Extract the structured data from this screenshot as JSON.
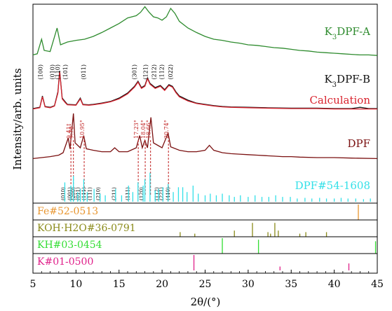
{
  "chart_data": {
    "type": "line",
    "xlabel": "2θ/(°)",
    "ylabel": "Intensity/arb. units",
    "xlim": [
      5,
      45
    ],
    "x_ticks": [
      5,
      10,
      15,
      20,
      25,
      30,
      35,
      40,
      45
    ],
    "grid": false,
    "series": [
      {
        "name": "K3DPF-A",
        "label_parts": [
          "K",
          "3",
          "DPF-A"
        ],
        "color": "#2e8b2e",
        "points": [
          [
            5,
            0.12
          ],
          [
            5.5,
            0.14
          ],
          [
            6,
            0.4
          ],
          [
            6.3,
            0.2
          ],
          [
            7,
            0.18
          ],
          [
            7.8,
            0.6
          ],
          [
            8.2,
            0.3
          ],
          [
            9,
            0.35
          ],
          [
            10,
            0.38
          ],
          [
            11,
            0.4
          ],
          [
            12,
            0.45
          ],
          [
            13,
            0.52
          ],
          [
            14,
            0.6
          ],
          [
            15,
            0.68
          ],
          [
            16,
            0.78
          ],
          [
            17,
            0.82
          ],
          [
            17.5,
            0.88
          ],
          [
            18,
            0.98
          ],
          [
            18.5,
            0.88
          ],
          [
            19,
            0.8
          ],
          [
            19.5,
            0.78
          ],
          [
            20,
            0.74
          ],
          [
            20.5,
            0.8
          ],
          [
            21,
            0.95
          ],
          [
            21.5,
            0.86
          ],
          [
            22,
            0.72
          ],
          [
            23,
            0.6
          ],
          [
            24,
            0.52
          ],
          [
            25,
            0.45
          ],
          [
            26,
            0.4
          ],
          [
            27,
            0.38
          ],
          [
            28,
            0.35
          ],
          [
            29,
            0.33
          ],
          [
            30,
            0.3
          ],
          [
            31,
            0.29
          ],
          [
            32,
            0.27
          ],
          [
            33,
            0.25
          ],
          [
            34,
            0.24
          ],
          [
            35,
            0.22
          ],
          [
            36,
            0.2
          ],
          [
            37,
            0.19
          ],
          [
            38,
            0.17
          ],
          [
            39,
            0.16
          ],
          [
            40,
            0.15
          ],
          [
            41,
            0.14
          ],
          [
            42,
            0.13
          ],
          [
            43,
            0.12
          ],
          [
            44,
            0.12
          ],
          [
            45,
            0.11
          ]
        ]
      },
      {
        "name": "K3DPF-B",
        "label_parts": [
          "K",
          "3",
          "DPF-B"
        ],
        "color": "#111111",
        "points": [
          [
            5,
            0.05
          ],
          [
            5.8,
            0.08
          ],
          [
            6.1,
            0.35
          ],
          [
            6.4,
            0.1
          ],
          [
            7,
            0.08
          ],
          [
            7.5,
            0.12
          ],
          [
            7.9,
            0.45
          ],
          [
            8.1,
            0.95
          ],
          [
            8.4,
            0.3
          ],
          [
            8.8,
            0.2
          ],
          [
            9,
            0.15
          ],
          [
            10,
            0.14
          ],
          [
            10.5,
            0.3
          ],
          [
            10.8,
            0.15
          ],
          [
            11.5,
            0.14
          ],
          [
            12,
            0.15
          ],
          [
            13,
            0.18
          ],
          [
            14,
            0.22
          ],
          [
            15,
            0.3
          ],
          [
            16,
            0.42
          ],
          [
            16.8,
            0.58
          ],
          [
            17.2,
            0.7
          ],
          [
            17.6,
            0.55
          ],
          [
            18,
            0.6
          ],
          [
            18.3,
            0.78
          ],
          [
            18.6,
            0.65
          ],
          [
            19.2,
            0.55
          ],
          [
            19.8,
            0.6
          ],
          [
            20.3,
            0.5
          ],
          [
            20.8,
            0.62
          ],
          [
            21.2,
            0.58
          ],
          [
            21.6,
            0.45
          ],
          [
            22,
            0.35
          ],
          [
            23,
            0.25
          ],
          [
            24,
            0.18
          ],
          [
            25,
            0.15
          ],
          [
            26,
            0.12
          ],
          [
            27,
            0.1
          ],
          [
            28,
            0.09
          ],
          [
            30,
            0.08
          ],
          [
            32,
            0.07
          ],
          [
            35,
            0.06
          ],
          [
            38,
            0.06
          ],
          [
            40,
            0.05
          ],
          [
            42,
            0.05
          ],
          [
            43,
            0.08
          ],
          [
            44,
            0.05
          ],
          [
            45,
            0.05
          ]
        ]
      },
      {
        "name": "Calculation",
        "color": "#d9232e",
        "points": [
          [
            5,
            0.04
          ],
          [
            5.8,
            0.07
          ],
          [
            6.1,
            0.33
          ],
          [
            6.4,
            0.09
          ],
          [
            7,
            0.07
          ],
          [
            7.5,
            0.11
          ],
          [
            7.9,
            0.42
          ],
          [
            8.1,
            0.92
          ],
          [
            8.4,
            0.28
          ],
          [
            8.8,
            0.18
          ],
          [
            9,
            0.14
          ],
          [
            10,
            0.13
          ],
          [
            10.5,
            0.28
          ],
          [
            10.8,
            0.14
          ],
          [
            11.5,
            0.13
          ],
          [
            12,
            0.14
          ],
          [
            13,
            0.17
          ],
          [
            14,
            0.21
          ],
          [
            15,
            0.28
          ],
          [
            16,
            0.4
          ],
          [
            16.8,
            0.56
          ],
          [
            17.2,
            0.68
          ],
          [
            17.6,
            0.53
          ],
          [
            18,
            0.58
          ],
          [
            18.3,
            0.76
          ],
          [
            18.6,
            0.63
          ],
          [
            19.2,
            0.53
          ],
          [
            19.8,
            0.58
          ],
          [
            20.3,
            0.48
          ],
          [
            20.8,
            0.6
          ],
          [
            21.2,
            0.56
          ],
          [
            21.6,
            0.43
          ],
          [
            22,
            0.33
          ],
          [
            23,
            0.23
          ],
          [
            24,
            0.17
          ],
          [
            25,
            0.14
          ],
          [
            26,
            0.11
          ],
          [
            27,
            0.09
          ],
          [
            28,
            0.08
          ],
          [
            30,
            0.07
          ],
          [
            32,
            0.06
          ],
          [
            35,
            0.05
          ],
          [
            38,
            0.05
          ],
          [
            40,
            0.04
          ],
          [
            42,
            0.04
          ],
          [
            45,
            0.04
          ]
        ]
      },
      {
        "name": "DPF",
        "color": "#7a1010",
        "points": [
          [
            5,
            0.08
          ],
          [
            6,
            0.1
          ],
          [
            7,
            0.12
          ],
          [
            8,
            0.15
          ],
          [
            8.5,
            0.2
          ],
          [
            9.1,
            0.5
          ],
          [
            9.3,
            0.28
          ],
          [
            9.7,
            1.0
          ],
          [
            9.9,
            0.4
          ],
          [
            10.5,
            0.3
          ],
          [
            10.9,
            0.55
          ],
          [
            11.2,
            0.28
          ],
          [
            12,
            0.25
          ],
          [
            13,
            0.22
          ],
          [
            14,
            0.22
          ],
          [
            14.5,
            0.3
          ],
          [
            15,
            0.22
          ],
          [
            16,
            0.22
          ],
          [
            17,
            0.3
          ],
          [
            17.4,
            0.55
          ],
          [
            17.7,
            0.3
          ],
          [
            18,
            0.45
          ],
          [
            18.3,
            0.3
          ],
          [
            18.7,
            0.92
          ],
          [
            19,
            0.4
          ],
          [
            19.5,
            0.35
          ],
          [
            20,
            0.3
          ],
          [
            20.7,
            0.6
          ],
          [
            21,
            0.32
          ],
          [
            22,
            0.25
          ],
          [
            23,
            0.22
          ],
          [
            24,
            0.22
          ],
          [
            25,
            0.25
          ],
          [
            25.5,
            0.35
          ],
          [
            26,
            0.25
          ],
          [
            27,
            0.2
          ],
          [
            28,
            0.18
          ],
          [
            29,
            0.17
          ],
          [
            30,
            0.16
          ],
          [
            31,
            0.15
          ],
          [
            32,
            0.14
          ],
          [
            33,
            0.13
          ],
          [
            34,
            0.12
          ],
          [
            35,
            0.12
          ],
          [
            36,
            0.11
          ],
          [
            38,
            0.1
          ],
          [
            40,
            0.1
          ],
          [
            42,
            0.09
          ],
          [
            45,
            0.08
          ]
        ]
      }
    ],
    "legend_labels": [
      "K3DPF-A",
      "K3DPF-B",
      "Calculation",
      "DPF",
      "DPF#54-1608"
    ],
    "miller_indices_B": [
      {
        "x": 6.1,
        "text": "(100)"
      },
      {
        "x": 7.5,
        "text": "(010)"
      },
      {
        "x": 8.1,
        "text": "(110)"
      },
      {
        "x": 9.0,
        "text": "(101)"
      },
      {
        "x": 11.1,
        "text": "(011)"
      },
      {
        "x": 17.0,
        "text": "(301)"
      },
      {
        "x": 18.3,
        "text": "(121)"
      },
      {
        "x": 19.3,
        "text": "(212)"
      },
      {
        "x": 20.2,
        "text": "(112)"
      },
      {
        "x": 21.2,
        "text": "(022)"
      }
    ],
    "dpf_angle_labels": [
      {
        "x": 9.41,
        "text": "9.41°"
      },
      {
        "x": 9.7,
        "text": "9.70°"
      },
      {
        "x": 10.95,
        "text": "10.95°"
      },
      {
        "x": 17.23,
        "text": "17.23°"
      },
      {
        "x": 18.04,
        "text": "18.04°"
      },
      {
        "x": 18.66,
        "text": "18.66°"
      },
      {
        "x": 20.74,
        "text": "20.74°"
      }
    ],
    "dpf_ref_indices": [
      {
        "x": 8.7,
        "text": "(010)"
      },
      {
        "x": 9.5,
        "text": "(001)"
      },
      {
        "x": 9.9,
        "text": "(200)"
      },
      {
        "x": 10.4,
        "text": "(011)"
      },
      {
        "x": 11.1,
        "text": "(111)"
      },
      {
        "x": 11.8,
        "text": "(111)"
      },
      {
        "x": 12.8,
        "text": "(210)"
      },
      {
        "x": 14.6,
        "text": "(211)"
      },
      {
        "x": 16.2,
        "text": "(111)"
      },
      {
        "x": 17.8,
        "text": "(120)"
      },
      {
        "x": 19.6,
        "text": "(112)"
      },
      {
        "x": 20.1,
        "text": "(221)"
      },
      {
        "x": 20.9,
        "text": "(410)"
      }
    ],
    "reference_dpf": {
      "name": "DPF#54-1608",
      "color": "#33e0e8",
      "peaks": [
        [
          8.7,
          0.6
        ],
        [
          9.4,
          0.5
        ],
        [
          9.7,
          0.8
        ],
        [
          10.2,
          0.3
        ],
        [
          10.5,
          0.4
        ],
        [
          10.9,
          0.7
        ],
        [
          11.3,
          0.3
        ],
        [
          12.1,
          0.4
        ],
        [
          12.8,
          0.25
        ],
        [
          13.4,
          0.2
        ],
        [
          14.6,
          0.4
        ],
        [
          15.3,
          0.2
        ],
        [
          16.1,
          0.5
        ],
        [
          16.6,
          0.3
        ],
        [
          17.2,
          0.6
        ],
        [
          17.8,
          0.5
        ],
        [
          18.0,
          0.7
        ],
        [
          18.6,
          0.9
        ],
        [
          19.2,
          0.35
        ],
        [
          19.6,
          0.4
        ],
        [
          20.1,
          0.45
        ],
        [
          20.7,
          0.55
        ],
        [
          21.3,
          0.3
        ],
        [
          21.9,
          0.45
        ],
        [
          22.4,
          0.45
        ],
        [
          22.9,
          0.3
        ],
        [
          23.6,
          0.5
        ],
        [
          24.2,
          0.25
        ],
        [
          25.0,
          0.2
        ],
        [
          25.6,
          0.25
        ],
        [
          26.3,
          0.2
        ],
        [
          27.0,
          0.25
        ],
        [
          27.8,
          0.2
        ],
        [
          28.4,
          0.15
        ],
        [
          29.1,
          0.2
        ],
        [
          30.0,
          0.15
        ],
        [
          30.8,
          0.2
        ],
        [
          31.6,
          0.15
        ],
        [
          32.4,
          0.15
        ],
        [
          33.2,
          0.2
        ],
        [
          34.0,
          0.15
        ],
        [
          34.9,
          0.15
        ],
        [
          35.7,
          0.1
        ],
        [
          36.6,
          0.12
        ],
        [
          37.4,
          0.1
        ],
        [
          38.3,
          0.12
        ],
        [
          39.1,
          0.1
        ],
        [
          40.0,
          0.1
        ],
        [
          40.8,
          0.12
        ],
        [
          41.6,
          0.1
        ],
        [
          42.5,
          0.1
        ],
        [
          43.4,
          0.08
        ],
        [
          44.2,
          0.1
        ]
      ]
    },
    "reference_panels": [
      {
        "name": "Fe#52-0513",
        "color": "#e8952e",
        "peaks": [
          [
            42.8,
            1.0
          ]
        ]
      },
      {
        "name": "KOH·H2O#36-0791",
        "color": "#8b8b1a",
        "peaks": [
          [
            22.1,
            0.3
          ],
          [
            23.8,
            0.2
          ],
          [
            28.4,
            0.4
          ],
          [
            30.5,
            0.9
          ],
          [
            32.3,
            0.3
          ],
          [
            32.6,
            0.2
          ],
          [
            33.1,
            0.9
          ],
          [
            33.5,
            0.4
          ],
          [
            36.0,
            0.2
          ],
          [
            36.7,
            0.3
          ],
          [
            39.1,
            0.3
          ]
        ]
      },
      {
        "name": "KH#03-0454",
        "color": "#33dd33",
        "peaks": [
          [
            27.0,
            1.0
          ],
          [
            31.2,
            0.9
          ],
          [
            44.8,
            0.8
          ]
        ]
      },
      {
        "name": "K#01-0500",
        "color": "#e0208a",
        "peaks": [
          [
            23.7,
            1.0
          ],
          [
            33.7,
            0.25
          ],
          [
            41.7,
            0.45
          ]
        ]
      }
    ]
  }
}
